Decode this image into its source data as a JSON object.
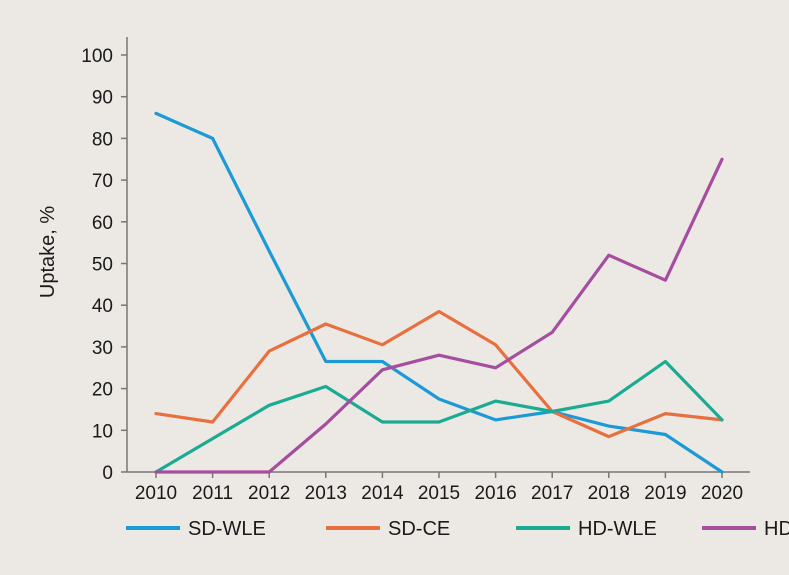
{
  "chart_data": {
    "type": "line",
    "title": "",
    "xlabel": "",
    "ylabel": "Uptake, %",
    "x": [
      "2010",
      "2011",
      "2012",
      "2013",
      "2014",
      "2015",
      "2016",
      "2017",
      "2018",
      "2019",
      "2020"
    ],
    "ylim": [
      0,
      100
    ],
    "yticks": [
      0,
      10,
      20,
      30,
      40,
      50,
      60,
      70,
      80,
      90,
      100
    ],
    "grid": false,
    "legend_position": "bottom",
    "background": "#ece9e5",
    "series": [
      {
        "name": "SD-WLE",
        "color": "#1b9ad6",
        "values": [
          86,
          80,
          53,
          26.5,
          26.5,
          17.5,
          12.5,
          14.5,
          11,
          9,
          0
        ]
      },
      {
        "name": "SD-CE",
        "color": "#e8703e",
        "values": [
          14,
          12,
          29,
          35.5,
          30.5,
          38.5,
          30.5,
          14.5,
          8.5,
          14,
          12.5
        ]
      },
      {
        "name": "HD-WLE",
        "color": "#1bab93",
        "values": [
          0,
          8,
          16,
          20.5,
          12,
          12,
          17,
          14.5,
          17,
          26.5,
          12.5
        ]
      },
      {
        "name": "HD+CE",
        "color": "#a54d9e",
        "values": [
          0,
          0,
          0,
          11.5,
          24.5,
          28,
          25,
          33.5,
          52,
          46,
          75
        ]
      }
    ]
  }
}
